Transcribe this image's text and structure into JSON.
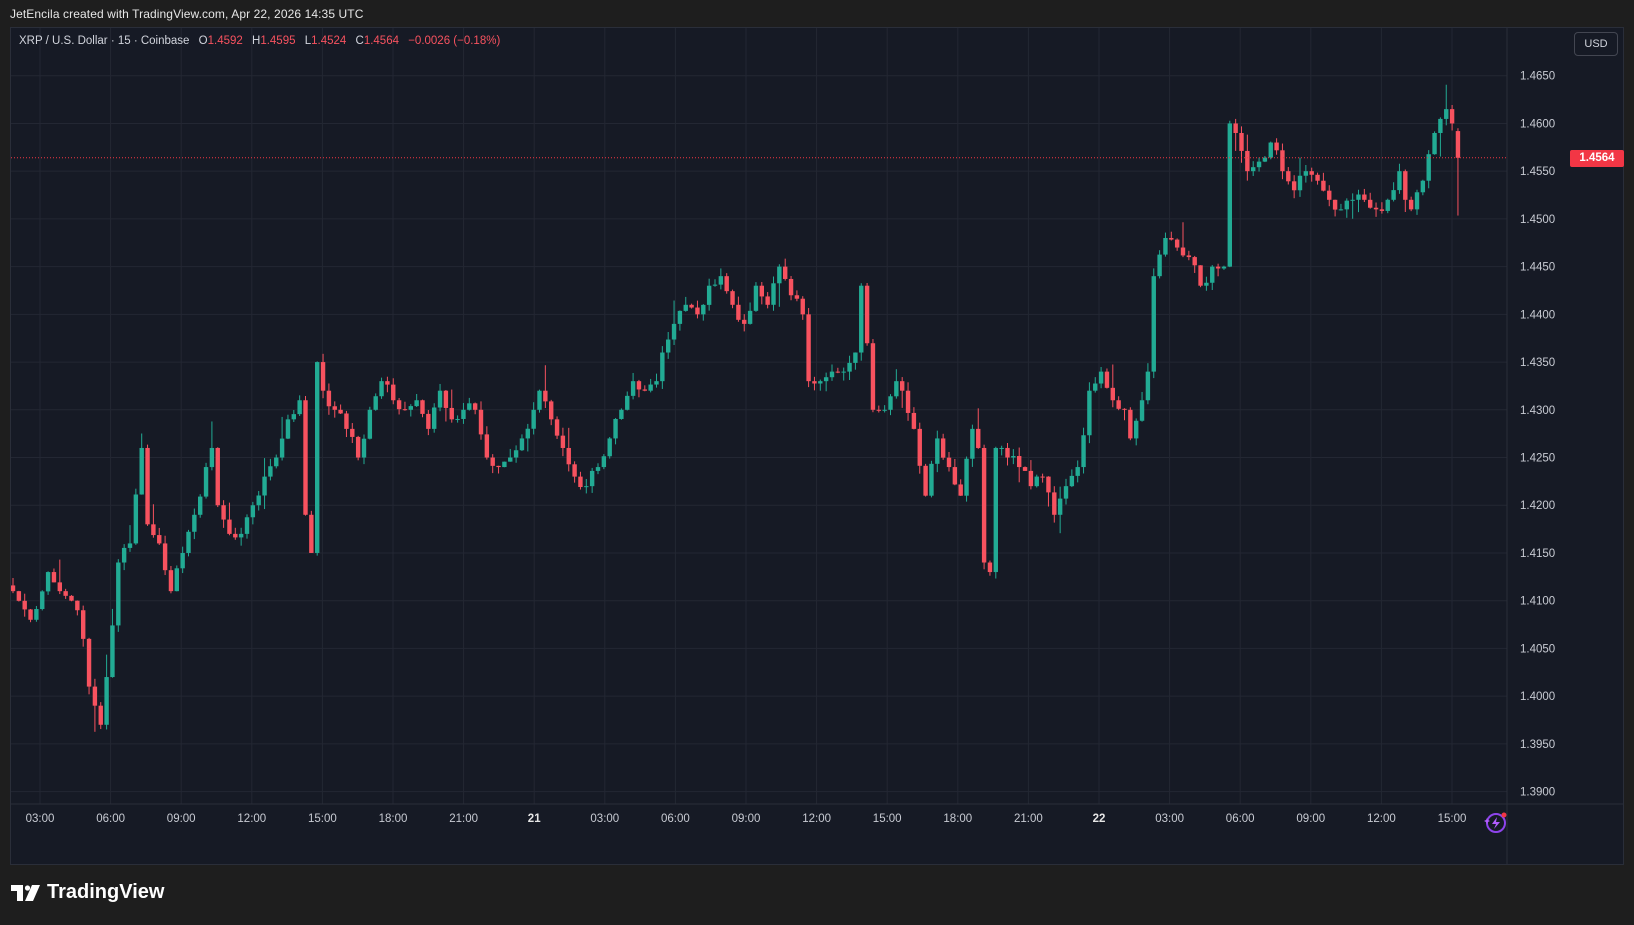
{
  "header": {
    "credit": "JetEncila created with TradingView.com, Apr 22, 2026 14:35 UTC"
  },
  "legend": {
    "symbol": "XRP / U.S. Dollar · 15 · Coinbase",
    "open_label": "O",
    "open": "1.4592",
    "high_label": "H",
    "high": "1.4595",
    "low_label": "L",
    "low": "1.4524",
    "close_label": "C",
    "close": "1.4564",
    "change": "−0.0026 (−0.18%)"
  },
  "currency_button": "USD",
  "last_price_label": "1.4564",
  "brand": {
    "name": "TradingView",
    "logo_icon": "tradingview-logo-icon"
  },
  "colors": {
    "up": "#22ab94",
    "down": "#f7525f",
    "background": "#161a25",
    "grid": "#232733",
    "last_price": "#f23645"
  },
  "chart_data": {
    "type": "candlestick",
    "symbol": "XRP / U.S. Dollar",
    "interval": "15",
    "exchange": "Coinbase",
    "y_axis": {
      "ticks": [
        "1.4650",
        "1.4600",
        "1.4550",
        "1.4500",
        "1.4450",
        "1.4400",
        "1.4350",
        "1.4300",
        "1.4250",
        "1.4200",
        "1.4150",
        "1.4100",
        "1.4050",
        "1.4000",
        "1.3950",
        "1.3900"
      ],
      "ylim": [
        1.3887,
        1.47
      ]
    },
    "x_axis": {
      "ticks": [
        "03:00",
        "06:00",
        "09:00",
        "12:00",
        "15:00",
        "18:00",
        "21:00",
        "21",
        "03:00",
        "06:00",
        "09:00",
        "12:00",
        "15:00",
        "18:00",
        "21:00",
        "22",
        "03:00",
        "06:00",
        "09:00",
        "12:00",
        "15:00"
      ],
      "bold_ticks": [
        "21",
        "22"
      ]
    },
    "last_price": 1.4564,
    "grid": true,
    "anchors": [
      [
        0,
        1.411
      ],
      [
        3,
        1.408
      ],
      [
        6,
        1.413
      ],
      [
        8,
        1.411
      ],
      [
        10,
        1.41
      ],
      [
        11,
        1.409
      ],
      [
        12,
        1.406
      ],
      [
        13,
        1.401
      ],
      [
        14,
        1.399
      ],
      [
        15,
        1.397
      ],
      [
        16,
        1.402
      ],
      [
        18,
        1.414
      ],
      [
        20,
        1.416
      ],
      [
        22,
        1.426
      ],
      [
        23,
        1.418
      ],
      [
        25,
        1.416
      ],
      [
        27,
        1.411
      ],
      [
        29,
        1.415
      ],
      [
        31,
        1.419
      ],
      [
        33,
        1.424
      ],
      [
        34,
        1.426
      ],
      [
        35,
        1.42
      ],
      [
        37,
        1.417
      ],
      [
        39,
        1.417
      ],
      [
        41,
        1.42
      ],
      [
        43,
        1.423
      ],
      [
        45,
        1.425
      ],
      [
        47,
        1.429
      ],
      [
        49,
        1.431
      ],
      [
        50,
        1.419
      ],
      [
        51,
        1.415
      ],
      [
        52,
        1.435
      ],
      [
        53,
        1.432
      ],
      [
        55,
        1.43
      ],
      [
        57,
        1.428
      ],
      [
        59,
        1.425
      ],
      [
        61,
        1.43
      ],
      [
        63,
        1.433
      ],
      [
        65,
        1.431
      ],
      [
        67,
        1.43
      ],
      [
        69,
        1.431
      ],
      [
        71,
        1.428
      ],
      [
        73,
        1.432
      ],
      [
        75,
        1.429
      ],
      [
        77,
        1.43
      ],
      [
        79,
        1.43
      ],
      [
        81,
        1.425
      ],
      [
        83,
        1.424
      ],
      [
        85,
        1.425
      ],
      [
        87,
        1.427
      ],
      [
        89,
        1.43
      ],
      [
        90,
        1.432
      ],
      [
        92,
        1.429
      ],
      [
        94,
        1.426
      ],
      [
        96,
        1.423
      ],
      [
        98,
        1.422
      ],
      [
        100,
        1.424
      ],
      [
        102,
        1.427
      ],
      [
        104,
        1.43
      ],
      [
        106,
        1.433
      ],
      [
        108,
        1.432
      ],
      [
        110,
        1.433
      ],
      [
        111,
        1.436
      ],
      [
        113,
        1.439
      ],
      [
        115,
        1.441
      ],
      [
        117,
        1.44
      ],
      [
        119,
        1.443
      ],
      [
        121,
        1.444
      ],
      [
        123,
        1.441
      ],
      [
        125,
        1.439
      ],
      [
        127,
        1.443
      ],
      [
        129,
        1.441
      ],
      [
        131,
        1.445
      ],
      [
        133,
        1.442
      ],
      [
        135,
        1.44
      ],
      [
        136,
        1.433
      ],
      [
        138,
        1.433
      ],
      [
        140,
        1.434
      ],
      [
        142,
        1.434
      ],
      [
        144,
        1.436
      ],
      [
        145,
        1.443
      ],
      [
        147,
        1.43
      ],
      [
        149,
        1.43
      ],
      [
        151,
        1.433
      ],
      [
        152,
        1.432
      ],
      [
        154,
        1.428
      ],
      [
        156,
        1.421
      ],
      [
        158,
        1.427
      ],
      [
        160,
        1.424
      ],
      [
        162,
        1.421
      ],
      [
        164,
        1.428
      ],
      [
        165,
        1.426
      ],
      [
        166,
        1.414
      ],
      [
        167,
        1.413
      ],
      [
        168,
        1.426
      ],
      [
        170,
        1.425
      ],
      [
        172,
        1.424
      ],
      [
        174,
        1.422
      ],
      [
        176,
        1.423
      ],
      [
        178,
        1.419
      ],
      [
        180,
        1.422
      ],
      [
        182,
        1.424
      ],
      [
        184,
        1.432
      ],
      [
        186,
        1.434
      ],
      [
        188,
        1.431
      ],
      [
        190,
        1.43
      ],
      [
        191,
        1.427
      ],
      [
        193,
        1.431
      ],
      [
        194,
        1.434
      ],
      [
        195,
        1.444
      ],
      [
        197,
        1.448
      ],
      [
        199,
        1.447
      ],
      [
        201,
        1.446
      ],
      [
        203,
        1.443
      ],
      [
        205,
        1.445
      ],
      [
        207,
        1.445
      ],
      [
        208,
        1.46
      ],
      [
        209,
        1.459
      ],
      [
        211,
        1.455
      ],
      [
        213,
        1.456
      ],
      [
        215,
        1.458
      ],
      [
        217,
        1.455
      ],
      [
        219,
        1.453
      ],
      [
        221,
        1.455
      ],
      [
        223,
        1.454
      ],
      [
        225,
        1.452
      ],
      [
        227,
        1.451
      ],
      [
        229,
        1.452
      ],
      [
        231,
        1.452
      ],
      [
        233,
        1.451
      ],
      [
        235,
        1.452
      ],
      [
        237,
        1.455
      ],
      [
        238,
        1.452
      ],
      [
        239,
        1.451
      ],
      [
        241,
        1.454
      ],
      [
        243,
        1.459
      ],
      [
        245,
        1.4615
      ],
      [
        246,
        1.46
      ],
      [
        247,
        1.4564
      ]
    ]
  }
}
